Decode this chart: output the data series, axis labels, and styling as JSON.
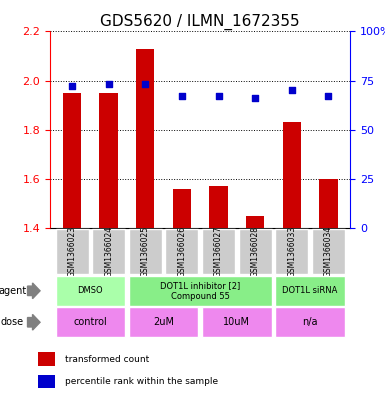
{
  "title": "GDS5620 / ILMN_1672355",
  "samples": [
    "GSM1366023",
    "GSM1366024",
    "GSM1366025",
    "GSM1366026",
    "GSM1366027",
    "GSM1366028",
    "GSM1366033",
    "GSM1366034"
  ],
  "bar_values": [
    1.95,
    1.95,
    2.13,
    1.56,
    1.57,
    1.45,
    1.83,
    1.6
  ],
  "dot_values": [
    72,
    73,
    73,
    67,
    67,
    66,
    70,
    67
  ],
  "ylim_left": [
    1.4,
    2.2
  ],
  "ylim_right": [
    0,
    100
  ],
  "yticks_left": [
    1.4,
    1.6,
    1.8,
    2.0,
    2.2
  ],
  "yticks_right": [
    0,
    25,
    50,
    75,
    100
  ],
  "ytick_labels_right": [
    "0",
    "25",
    "50",
    "75",
    "100%"
  ],
  "bar_color": "#cc0000",
  "dot_color": "#0000cc",
  "legend_bar_label": "transformed count",
  "legend_dot_label": "percentile rank within the sample",
  "agent_label": "agent",
  "dose_label": "dose",
  "bg_color": "#ffffff",
  "sample_bg_color": "#cccccc",
  "agent_groups": [
    {
      "label": "DMSO",
      "start": 0,
      "end": 1,
      "color": "#aaffaa"
    },
    {
      "label": "DOT1L inhibitor [2]\nCompound 55",
      "start": 2,
      "end": 5,
      "color": "#88ee88"
    },
    {
      "label": "DOT1L siRNA",
      "start": 6,
      "end": 7,
      "color": "#88ee88"
    }
  ],
  "dose_groups": [
    {
      "label": "control",
      "start": 0,
      "end": 1,
      "color": "#ee88ee"
    },
    {
      "label": "2uM",
      "start": 2,
      "end": 3,
      "color": "#ee88ee"
    },
    {
      "label": "10uM",
      "start": 4,
      "end": 5,
      "color": "#ee88ee"
    },
    {
      "label": "n/a",
      "start": 6,
      "end": 7,
      "color": "#ee88ee"
    }
  ]
}
